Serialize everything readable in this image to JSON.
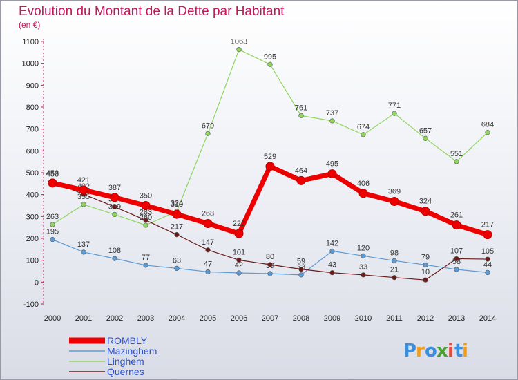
{
  "chart_data": {
    "type": "line",
    "title": "Evolution du Montant de la Dette par Habitant",
    "subtitle": "(en €)",
    "x": [
      "2000",
      "2001",
      "2002",
      "2003",
      "2004",
      "2005",
      "2006",
      "2007",
      "2008",
      "2009",
      "2010",
      "2011",
      "2012",
      "2013",
      "2014"
    ],
    "ylim": [
      -100,
      1100
    ],
    "yticks": [
      -100,
      0,
      100,
      200,
      300,
      400,
      500,
      600,
      700,
      800,
      900,
      1000,
      1100
    ],
    "grid": false,
    "legend_position": "bottom-left",
    "series": [
      {
        "name": "ROMBLY",
        "color": "#ee0000",
        "values": [
          453,
          421,
          387,
          350,
          310,
          268,
          222,
          529,
          464,
          495,
          406,
          369,
          324,
          261,
          217
        ]
      },
      {
        "name": "Mazinghem",
        "color": "#5b9bd5",
        "values": [
          195,
          137,
          108,
          77,
          63,
          47,
          42,
          39,
          33,
          142,
          120,
          98,
          79,
          58,
          44
        ]
      },
      {
        "name": "Linghem",
        "color": "#8fd65c",
        "values": [
          263,
          355,
          309,
          260,
          324,
          679,
          1063,
          995,
          761,
          737,
          674,
          771,
          657,
          551,
          684
        ]
      },
      {
        "name": "Quernes",
        "color": "#6b1a1a",
        "values": [
          458,
          402,
          344,
          283,
          217,
          147,
          101,
          80,
          59,
          43,
          33,
          21,
          10,
          107,
          105
        ]
      }
    ]
  },
  "brand": {
    "letters": [
      "P",
      "r",
      "o",
      "x",
      "i",
      "t",
      "i"
    ],
    "colors": [
      "#3a8fe0",
      "#f39c12",
      "#3a8fe0",
      "#4aa02c",
      "#e74c3c",
      "#3a8fe0",
      "#f39c12"
    ]
  }
}
